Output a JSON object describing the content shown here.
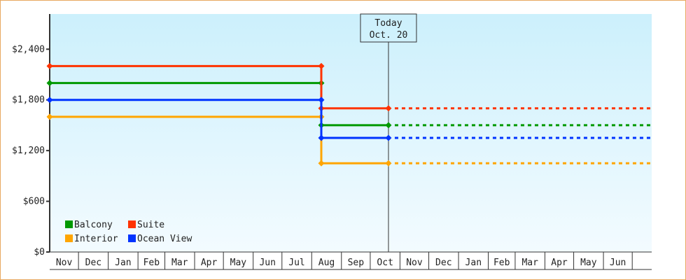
{
  "chart_data": {
    "type": "line",
    "step": true,
    "title": "",
    "xlabel": "",
    "ylabel": "",
    "ylim": [
      0,
      2800
    ],
    "yticks": [
      0,
      600,
      1200,
      1800,
      2400
    ],
    "ytick_labels": [
      "$0",
      "$600",
      "$1,200",
      "$1,800",
      "$2,400"
    ],
    "x_months": [
      "Nov",
      "Dec",
      "Jan",
      "Feb",
      "Mar",
      "Apr",
      "May",
      "Jun",
      "Jul",
      "Aug",
      "Sep",
      "Oct",
      "Nov",
      "Dec",
      "Jan",
      "Feb",
      "Mar",
      "Apr",
      "May",
      "Jun"
    ],
    "grid": false,
    "legend_placement": "bottom-left",
    "today_marker": {
      "line1": "Today",
      "line2": "Oct. 20",
      "x": "Oct 20"
    },
    "projection_style": "dotted, extends to right edge",
    "series": [
      {
        "name": "Balcony",
        "color": "#009900",
        "points": [
          {
            "x": "Nov 1",
            "y": 2000
          },
          {
            "x": "Aug 11",
            "y": 2000
          },
          {
            "x": "Aug 11",
            "y": 1500
          },
          {
            "x": "Oct 20",
            "y": 1500
          }
        ]
      },
      {
        "name": "Suite",
        "color": "#ff3300",
        "points": [
          {
            "x": "Nov 1",
            "y": 2200
          },
          {
            "x": "Aug 11",
            "y": 2200
          },
          {
            "x": "Aug 11",
            "y": 1700
          },
          {
            "x": "Oct 20",
            "y": 1700
          }
        ]
      },
      {
        "name": "Interior",
        "color": "#ffa500",
        "points": [
          {
            "x": "Nov 1",
            "y": 1600
          },
          {
            "x": "Aug 11",
            "y": 1600
          },
          {
            "x": "Aug 11",
            "y": 1050
          },
          {
            "x": "Oct 20",
            "y": 1050
          }
        ]
      },
      {
        "name": "Ocean View",
        "color": "#0033ff",
        "points": [
          {
            "x": "Nov 1",
            "y": 1800
          },
          {
            "x": "Aug 11",
            "y": 1800
          },
          {
            "x": "Aug 11",
            "y": 1350
          },
          {
            "x": "Oct 20",
            "y": 1350
          }
        ]
      }
    ]
  }
}
